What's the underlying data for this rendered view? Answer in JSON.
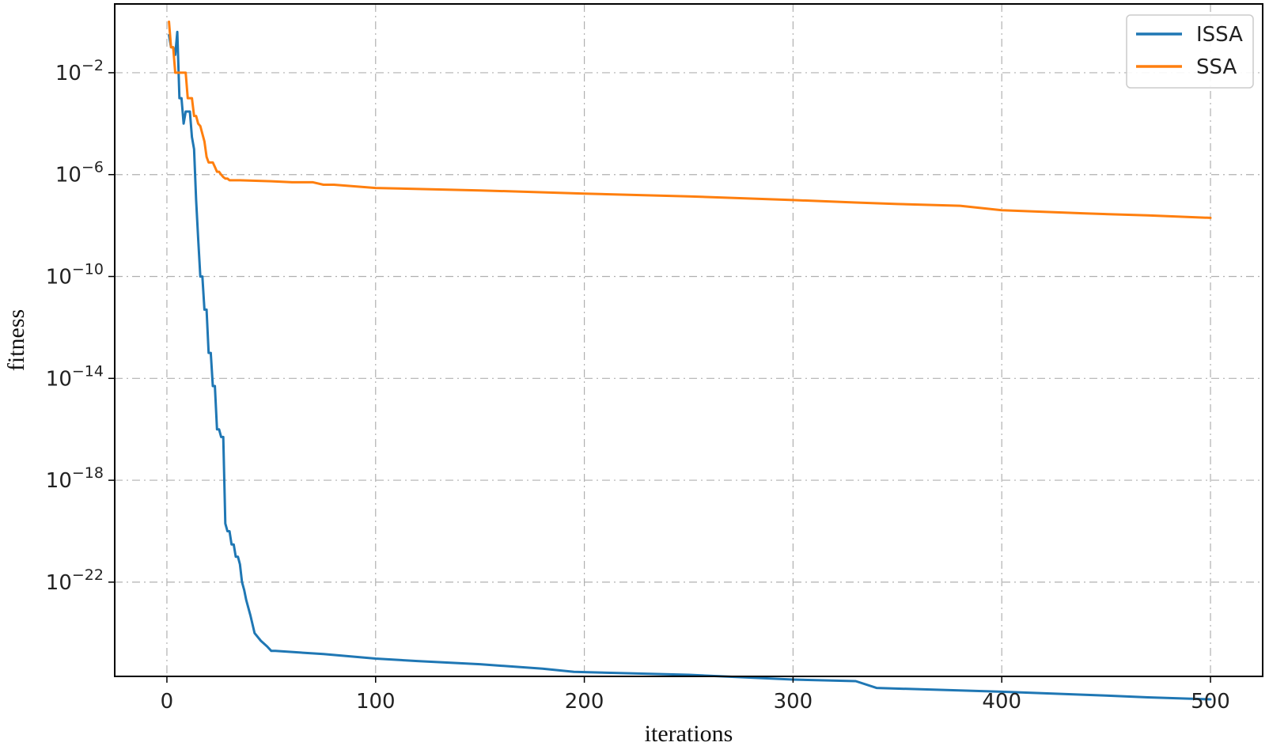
{
  "chart_data": {
    "type": "line",
    "title": "",
    "xlabel": "iterations",
    "ylabel": "fitness",
    "xlim": [
      -25,
      525
    ],
    "x_ticks": [
      0,
      100,
      200,
      300,
      400,
      500
    ],
    "y_scale": "log",
    "ylim_exp": [
      -25.7,
      0.7
    ],
    "y_tick_exps": [
      -2,
      -6,
      -10,
      -14,
      -18,
      -22
    ],
    "grid": true,
    "legend_placement": "top-right",
    "series": [
      {
        "name": "ISSA",
        "color": "#1f77b4",
        "x": [
          1,
          2,
          3,
          4,
          5,
          6,
          7,
          8,
          9,
          10,
          11,
          12,
          13,
          14,
          15,
          16,
          17,
          18,
          19,
          20,
          21,
          22,
          23,
          24,
          25,
          26,
          27,
          28,
          29,
          30,
          31,
          32,
          33,
          34,
          35,
          36,
          37,
          38,
          40,
          42,
          45,
          48,
          50,
          52,
          75,
          100,
          120,
          150,
          180,
          195,
          250,
          300,
          330,
          340,
          400,
          450,
          470,
          500
        ],
        "y": [
          "3e-1",
          "1e-1",
          "1e-1",
          "5e-2",
          "4e-1",
          "1e-3",
          "1e-3",
          "1e-4",
          "3e-4",
          "3e-4",
          "3e-4",
          "3e-5",
          "1e-5",
          "1e-7",
          "3e-9",
          "1e-10",
          "1e-10",
          "5e-12",
          "5e-12",
          "1e-13",
          "1e-13",
          "5e-15",
          "5e-15",
          "1e-16",
          "1e-16",
          "5e-17",
          "5e-17",
          "2e-20",
          "1e-20",
          "1e-20",
          "3e-21",
          "3e-21",
          "1e-21",
          "1e-21",
          "5e-22",
          "1e-22",
          "5e-23",
          "2e-23",
          "5e-24",
          "1e-24",
          "5e-25",
          "3e-25",
          "2e-25",
          "2e-25",
          "1.5e-25",
          "1e-25",
          "8e-26",
          "6e-26",
          "4e-26",
          "3e-26",
          "2.3e-26",
          "1.5e-26",
          "1.3e-26",
          "7e-27",
          "5e-27",
          "3.5e-27",
          "3e-27",
          "2.5e-27"
        ]
      },
      {
        "name": "SSA",
        "color": "#ff7f0e",
        "x": [
          1,
          2,
          3,
          4,
          5,
          6,
          7,
          8,
          9,
          10,
          11,
          12,
          13,
          14,
          15,
          16,
          17,
          18,
          19,
          20,
          21,
          22,
          23,
          24,
          25,
          26,
          27,
          28,
          29,
          30,
          35,
          50,
          60,
          70,
          75,
          80,
          100,
          150,
          200,
          250,
          300,
          330,
          350,
          380,
          400,
          440,
          470,
          500
        ],
        "y": [
          "1e0",
          "1e-1",
          "1e-1",
          "1e-2",
          "1e-2",
          "1e-2",
          "1e-2",
          "1e-2",
          "1e-2",
          "1e-3",
          "1e-3",
          "1e-3",
          "2e-4",
          "2e-4",
          "1e-4",
          "8e-5",
          "4e-5",
          "2e-5",
          "5e-6",
          "3e-6",
          "3e-6",
          "3e-6",
          "2e-6",
          "1.3e-6",
          "1.3e-6",
          "1e-6",
          "8e-7",
          "7e-7",
          "7e-7",
          "6e-7",
          "6e-7",
          "5.5e-7",
          "5e-7",
          "5e-7",
          "4e-7",
          "4e-7",
          "3e-7",
          "2.4e-7",
          "1.8e-7",
          "1.4e-7",
          "1e-7",
          "8e-8",
          "7e-8",
          "6e-8",
          "4e-8",
          "3e-8",
          "2.5e-8",
          "2e-8"
        ]
      }
    ]
  }
}
